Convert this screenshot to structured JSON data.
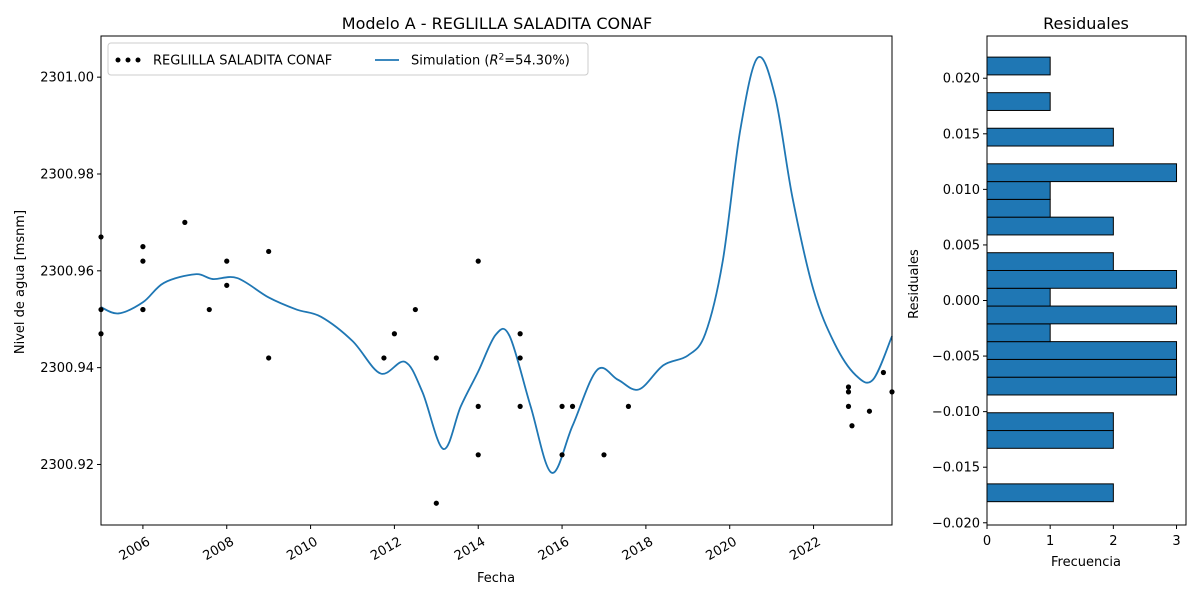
{
  "chart_data": [
    {
      "type": "line",
      "title": "Modelo A - REGLILLA SALADITA CONAF",
      "xlabel": "Fecha",
      "ylabel": "Nivel de agua [msnm]",
      "xlim": [
        "2005-01-01",
        "2023-11-15"
      ],
      "ylim": [
        2300.9075,
        2301.0085
      ],
      "x_ticks": [
        "2006",
        "2008",
        "2010",
        "2012",
        "2014",
        "2016",
        "2018",
        "2020",
        "2022"
      ],
      "y_ticks": [
        {
          "value": 2300.92,
          "label": "2300.92"
        },
        {
          "value": 2300.94,
          "label": "2300.94"
        },
        {
          "value": 2300.96,
          "label": "2300.96"
        },
        {
          "value": 2300.98,
          "label": "2300.98"
        },
        {
          "value": 2301.0,
          "label": "2301.00"
        }
      ],
      "grid": false,
      "legend_position": "top-left",
      "legend_entries": [
        {
          "label": "REGLILLA SALADITA CONAF",
          "marker": "dots",
          "color": "#000000"
        },
        {
          "label_prefix": "Simulation (",
          "label_italic": "R",
          "label_sup": "2",
          "label_suffix": "=54.30%)",
          "marker": "line",
          "color": "#1f77b4"
        }
      ],
      "series": [
        {
          "name": "REGLILLA SALADITA CONAF",
          "kind": "scatter",
          "color": "#000000",
          "points": [
            {
              "x": "2005-01-01",
              "y": 2300.967
            },
            {
              "x": "2005-01-01",
              "y": 2300.952
            },
            {
              "x": "2005-01-01",
              "y": 2300.947
            },
            {
              "x": "2006-01-01",
              "y": 2300.965
            },
            {
              "x": "2006-01-01",
              "y": 2300.962
            },
            {
              "x": "2006-01-01",
              "y": 2300.952
            },
            {
              "x": "2006-01-01",
              "y": 2300.952
            },
            {
              "x": "2007-01-01",
              "y": 2300.97
            },
            {
              "x": "2007-08-01",
              "y": 2300.952
            },
            {
              "x": "2008-01-01",
              "y": 2300.962
            },
            {
              "x": "2008-01-01",
              "y": 2300.957
            },
            {
              "x": "2009-01-01",
              "y": 2300.964
            },
            {
              "x": "2009-01-01",
              "y": 2300.942
            },
            {
              "x": "2011-10-01",
              "y": 2300.942
            },
            {
              "x": "2012-01-01",
              "y": 2300.947
            },
            {
              "x": "2012-07-01",
              "y": 2300.952
            },
            {
              "x": "2013-01-01",
              "y": 2300.942
            },
            {
              "x": "2013-01-01",
              "y": 2300.912
            },
            {
              "x": "2014-01-01",
              "y": 2300.962
            },
            {
              "x": "2014-01-01",
              "y": 2300.932
            },
            {
              "x": "2014-01-01",
              "y": 2300.922
            },
            {
              "x": "2015-01-01",
              "y": 2300.947
            },
            {
              "x": "2015-01-01",
              "y": 2300.942
            },
            {
              "x": "2015-01-01",
              "y": 2300.932
            },
            {
              "x": "2016-01-01",
              "y": 2300.932
            },
            {
              "x": "2016-01-01",
              "y": 2300.922
            },
            {
              "x": "2016-04-01",
              "y": 2300.932
            },
            {
              "x": "2017-01-01",
              "y": 2300.922
            },
            {
              "x": "2017-08-01",
              "y": 2300.932
            },
            {
              "x": "2022-11-01",
              "y": 2300.936
            },
            {
              "x": "2022-11-01",
              "y": 2300.935
            },
            {
              "x": "2022-11-01",
              "y": 2300.932
            },
            {
              "x": "2022-12-01",
              "y": 2300.928
            },
            {
              "x": "2023-05-01",
              "y": 2300.931
            },
            {
              "x": "2023-09-01",
              "y": 2300.939
            },
            {
              "x": "2023-11-15",
              "y": 2300.935
            }
          ]
        },
        {
          "name": "Simulation",
          "kind": "line",
          "color": "#1f77b4",
          "points": [
            {
              "x": "2005-01-01",
              "y": 2300.9525
            },
            {
              "x": "2005-06-01",
              "y": 2300.9512
            },
            {
              "x": "2006-01-01",
              "y": 2300.9535
            },
            {
              "x": "2006-07-01",
              "y": 2300.9575
            },
            {
              "x": "2007-04-01",
              "y": 2300.9593
            },
            {
              "x": "2007-09-01",
              "y": 2300.9583
            },
            {
              "x": "2008-04-01",
              "y": 2300.9585
            },
            {
              "x": "2009-01-01",
              "y": 2300.9545
            },
            {
              "x": "2009-09-01",
              "y": 2300.952
            },
            {
              "x": "2010-04-01",
              "y": 2300.9505
            },
            {
              "x": "2011-01-01",
              "y": 2300.9455
            },
            {
              "x": "2011-09-01",
              "y": 2300.9388
            },
            {
              "x": "2012-04-01",
              "y": 2300.9412
            },
            {
              "x": "2012-09-01",
              "y": 2300.935
            },
            {
              "x": "2013-03-01",
              "y": 2300.9232
            },
            {
              "x": "2013-08-01",
              "y": 2300.932
            },
            {
              "x": "2014-01-01",
              "y": 2300.9392
            },
            {
              "x": "2014-06-01",
              "y": 2300.9468
            },
            {
              "x": "2014-10-01",
              "y": 2300.9465
            },
            {
              "x": "2015-04-01",
              "y": 2300.932
            },
            {
              "x": "2015-10-01",
              "y": 2300.9183
            },
            {
              "x": "2016-04-01",
              "y": 2300.928
            },
            {
              "x": "2016-11-01",
              "y": 2300.9395
            },
            {
              "x": "2017-05-01",
              "y": 2300.9375
            },
            {
              "x": "2017-11-01",
              "y": 2300.9355
            },
            {
              "x": "2018-06-01",
              "y": 2300.9405
            },
            {
              "x": "2019-01-01",
              "y": 2300.9425
            },
            {
              "x": "2019-06-01",
              "y": 2300.947
            },
            {
              "x": "2019-11-01",
              "y": 2300.962
            },
            {
              "x": "2020-04-01",
              "y": 2300.989
            },
            {
              "x": "2020-09-01",
              "y": 2301.004
            },
            {
              "x": "2021-02-01",
              "y": 2300.996
            },
            {
              "x": "2021-07-01",
              "y": 2300.975
            },
            {
              "x": "2022-01-01",
              "y": 2300.956
            },
            {
              "x": "2022-07-01",
              "y": 2300.945
            },
            {
              "x": "2023-01-01",
              "y": 2300.9385
            },
            {
              "x": "2023-06-01",
              "y": 2300.9375
            },
            {
              "x": "2023-11-15",
              "y": 2300.9465
            }
          ]
        }
      ]
    },
    {
      "type": "bar",
      "orientation": "horizontal",
      "title": "Residuales",
      "xlabel": "Frecuencia",
      "ylabel": "Residuales",
      "xlim": [
        0,
        3.15
      ],
      "ylim": [
        -0.0202,
        0.0238
      ],
      "x_ticks": [
        0,
        1,
        2,
        3
      ],
      "y_ticks": [
        {
          "value": -0.02,
          "label": "−0.020"
        },
        {
          "value": -0.015,
          "label": "−0.015"
        },
        {
          "value": -0.01,
          "label": "−0.010"
        },
        {
          "value": -0.005,
          "label": "−0.005"
        },
        {
          "value": 0.0,
          "label": "0.000"
        },
        {
          "value": 0.005,
          "label": "0.005"
        },
        {
          "value": 0.01,
          "label": "0.010"
        },
        {
          "value": 0.015,
          "label": "0.015"
        },
        {
          "value": 0.02,
          "label": "0.020"
        }
      ],
      "grid": false,
      "bar_color": "#1f77b4",
      "bins": [
        {
          "from": -0.0181,
          "to": -0.0165,
          "count": 2
        },
        {
          "from": -0.0133,
          "to": -0.0117,
          "count": 2
        },
        {
          "from": -0.0117,
          "to": -0.0101,
          "count": 2
        },
        {
          "from": -0.0085,
          "to": -0.0069,
          "count": 3
        },
        {
          "from": -0.0069,
          "to": -0.0053,
          "count": 3
        },
        {
          "from": -0.0053,
          "to": -0.0037,
          "count": 3
        },
        {
          "from": -0.0037,
          "to": -0.0021,
          "count": 1
        },
        {
          "from": -0.0021,
          "to": -0.0005,
          "count": 3
        },
        {
          "from": -0.0005,
          "to": 0.0011,
          "count": 1
        },
        {
          "from": 0.0011,
          "to": 0.0027,
          "count": 3
        },
        {
          "from": 0.0027,
          "to": 0.0043,
          "count": 2
        },
        {
          "from": 0.0059,
          "to": 0.0075,
          "count": 2
        },
        {
          "from": 0.0075,
          "to": 0.0091,
          "count": 1
        },
        {
          "from": 0.0091,
          "to": 0.0107,
          "count": 1
        },
        {
          "from": 0.0107,
          "to": 0.0123,
          "count": 3
        },
        {
          "from": 0.0139,
          "to": 0.0155,
          "count": 2
        },
        {
          "from": 0.0171,
          "to": 0.0187,
          "count": 1
        },
        {
          "from": 0.0203,
          "to": 0.0219,
          "count": 1
        }
      ]
    }
  ]
}
